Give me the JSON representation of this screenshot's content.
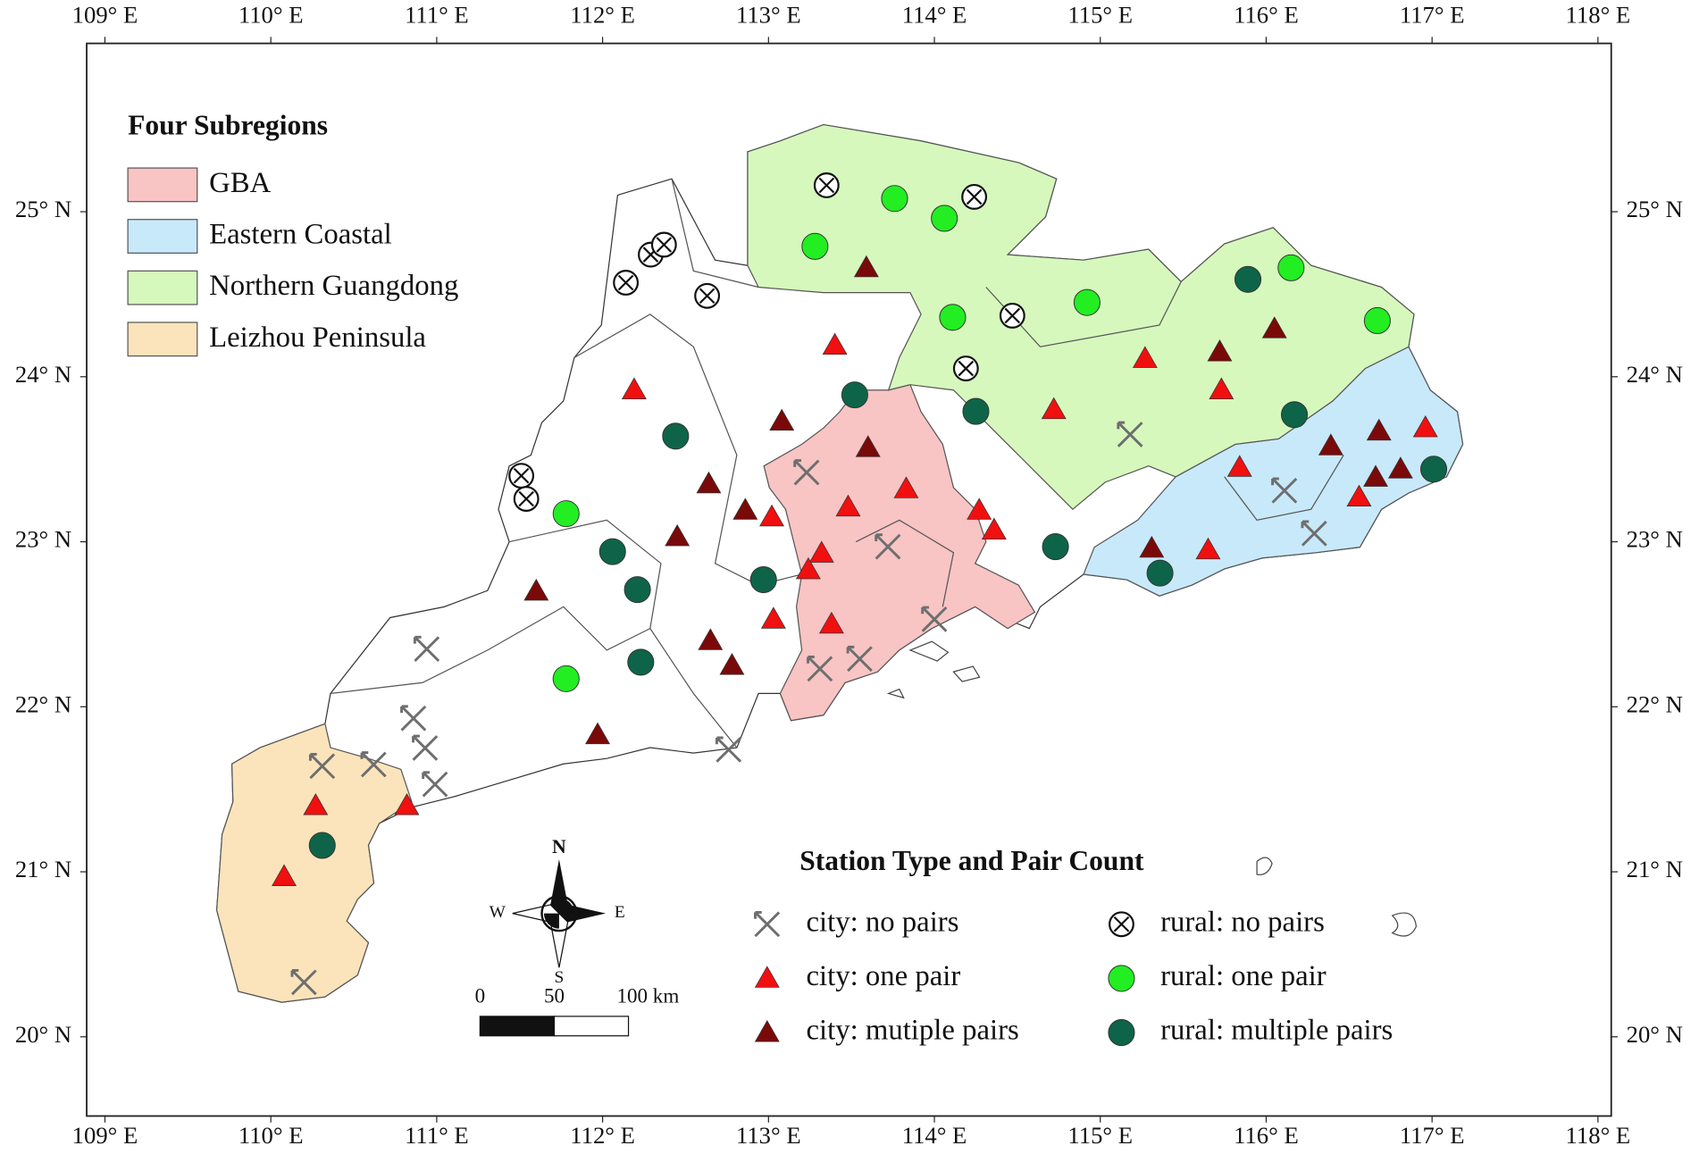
{
  "chart_data": {
    "type": "map",
    "xlim": [
      108.89,
      118.08
    ],
    "ylim": [
      19.52,
      26.02
    ],
    "xticks": [
      {
        "value": 109,
        "label": "109° E"
      },
      {
        "value": 110,
        "label": "110° E"
      },
      {
        "value": 111,
        "label": "111° E"
      },
      {
        "value": 112,
        "label": "112° E"
      },
      {
        "value": 113,
        "label": "113° E"
      },
      {
        "value": 114,
        "label": "114° E"
      },
      {
        "value": 115,
        "label": "115° E"
      },
      {
        "value": 116,
        "label": "116° E"
      },
      {
        "value": 117,
        "label": "117° E"
      },
      {
        "value": 118,
        "label": "118° E"
      }
    ],
    "yticks": [
      {
        "value": 20,
        "label": "20° N"
      },
      {
        "value": 21,
        "label": "21° N"
      },
      {
        "value": 22,
        "label": "22° N"
      },
      {
        "value": 23,
        "label": "23° N"
      },
      {
        "value": 24,
        "label": "24° N"
      },
      {
        "value": 25,
        "label": "25° N"
      }
    ],
    "regions_title": "Four Subregions",
    "regions": [
      {
        "name": "GBA",
        "color": "#f8c4c4"
      },
      {
        "name": "Eastern Coastal",
        "color": "#c8e9fa"
      },
      {
        "name": "Northern Guangdong",
        "color": "#d6f8bd"
      },
      {
        "name": "Leizhou Peninsula",
        "color": "#fbe4bb"
      }
    ],
    "legend_title": "Station Type and Pair Count",
    "series": [
      {
        "name": "city: no pairs",
        "marker": "x",
        "color": "#6e6e6e",
        "x": [
          115.18,
          116.11,
          116.29,
          113.23,
          113.72,
          114.0,
          113.31,
          113.55,
          110.94,
          110.86,
          110.93,
          110.99,
          110.31,
          110.62,
          112.76,
          110.2
        ],
        "y": [
          23.65,
          23.31,
          23.05,
          23.42,
          22.97,
          22.53,
          22.23,
          22.29,
          22.35,
          21.93,
          21.75,
          21.53,
          21.64,
          21.65,
          21.74,
          20.33
        ]
      },
      {
        "name": "city: one pair",
        "marker": "triangle",
        "color": "#f01010",
        "x": [
          113.4,
          112.19,
          115.27,
          114.72,
          115.73,
          116.96,
          115.84,
          113.48,
          113.83,
          113.02,
          114.27,
          114.36,
          113.32,
          113.24,
          113.03,
          113.38,
          115.65,
          116.56,
          110.27,
          110.82,
          110.08
        ],
        "y": [
          24.19,
          23.92,
          24.11,
          23.8,
          23.92,
          23.69,
          23.45,
          23.21,
          23.32,
          23.15,
          23.19,
          23.07,
          22.93,
          22.83,
          22.53,
          22.5,
          22.95,
          23.27,
          21.4,
          21.4,
          20.97
        ]
      },
      {
        "name": "city: mutiple pairs",
        "marker": "triangle",
        "color": "#7a0a0a",
        "x": [
          113.59,
          116.05,
          115.72,
          113.08,
          113.6,
          112.64,
          112.86,
          112.45,
          116.39,
          116.68,
          116.66,
          116.81,
          115.31,
          111.6,
          112.65,
          112.78,
          111.97
        ],
        "y": [
          24.66,
          24.29,
          24.15,
          23.73,
          23.57,
          23.35,
          23.19,
          23.03,
          23.58,
          23.67,
          23.39,
          23.44,
          22.96,
          22.7,
          22.4,
          22.25,
          21.83
        ]
      },
      {
        "name": "rural: no pairs",
        "marker": "circle-x",
        "color": "#111111",
        "x": [
          113.35,
          114.24,
          112.14,
          112.29,
          112.37,
          112.63,
          114.47,
          114.19,
          111.51,
          111.54
        ],
        "y": [
          25.16,
          25.09,
          24.57,
          24.74,
          24.8,
          24.49,
          24.37,
          24.05,
          23.4,
          23.26
        ]
      },
      {
        "name": "rural: one pair",
        "marker": "circle",
        "color": "#22ee22",
        "x": [
          113.76,
          114.06,
          113.28,
          114.11,
          114.92,
          116.15,
          116.67,
          111.78,
          111.78
        ],
        "y": [
          25.08,
          24.96,
          24.79,
          24.36,
          24.45,
          24.66,
          24.34,
          23.17,
          22.17
        ]
      },
      {
        "name": "rural: multiple pairs",
        "marker": "circle",
        "color": "#0e6448",
        "x": [
          115.89,
          113.52,
          114.25,
          112.44,
          116.17,
          112.06,
          112.21,
          112.97,
          114.73,
          112.23,
          115.36,
          117.01,
          110.31
        ],
        "y": [
          24.59,
          23.89,
          23.79,
          23.64,
          23.77,
          22.94,
          22.71,
          22.77,
          22.97,
          22.27,
          22.81,
          23.44,
          21.16
        ]
      }
    ],
    "scale_bar": [
      0,
      50,
      {
        "value": 100,
        "label": "100 km"
      }
    ],
    "compass": [
      "N",
      "S",
      "E",
      "W"
    ]
  }
}
